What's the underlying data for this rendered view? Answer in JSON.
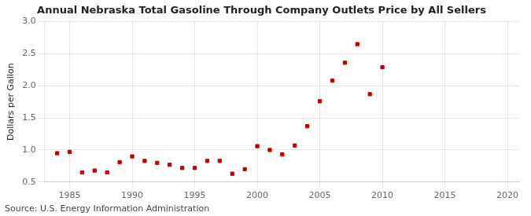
{
  "chart_data": {
    "type": "scatter",
    "title": "Annual Nebraska Total Gasoline Through Company Outlets Price by All Sellers",
    "ylabel": "Dollars per Gallon",
    "annotation": "Source: U.S. Energy Information Administration",
    "x": [
      1984,
      1985,
      1986,
      1987,
      1988,
      1989,
      1990,
      1991,
      1992,
      1993,
      1994,
      1995,
      1996,
      1997,
      1998,
      1999,
      2000,
      2001,
      2002,
      2003,
      2004,
      2005,
      2006,
      2007,
      2008,
      2009,
      2010
    ],
    "values": [
      0.95,
      0.97,
      0.65,
      0.68,
      0.65,
      0.81,
      0.9,
      0.83,
      0.8,
      0.77,
      0.72,
      0.72,
      0.83,
      0.83,
      0.63,
      0.7,
      1.06,
      1.0,
      0.93,
      1.07,
      1.37,
      1.76,
      2.08,
      2.36,
      2.65,
      1.87,
      2.29
    ],
    "color": "#c00000",
    "marker": "square",
    "xlim": [
      1983,
      2021
    ],
    "ylim": [
      0.5,
      3.0
    ],
    "xticks": [
      1985,
      1990,
      1995,
      2000,
      2005,
      2010,
      2015,
      2020
    ],
    "yticks": [
      0.5,
      {
        "value": 1.0,
        "label": "1.0"
      },
      1.5,
      {
        "value": 2.0,
        "label": "2.0"
      },
      2.5,
      {
        "value": 3.0,
        "label": "3.0"
      }
    ],
    "grid": true
  }
}
